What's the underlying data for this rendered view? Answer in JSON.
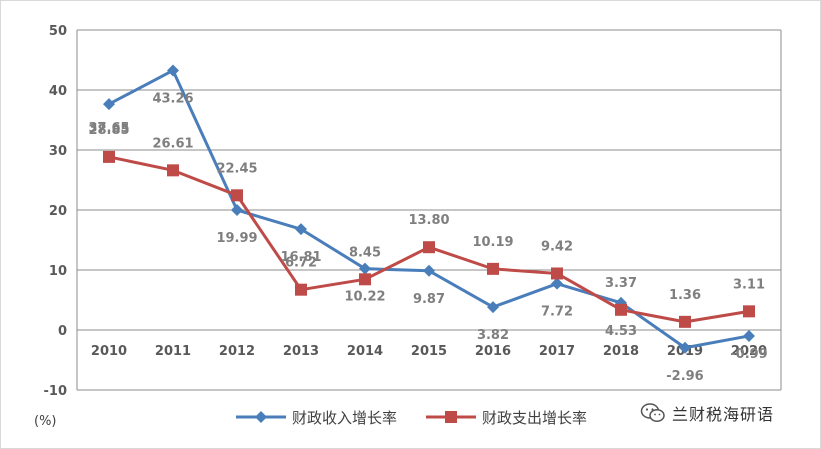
{
  "chart_data": {
    "type": "line",
    "title": "",
    "xlabel": "",
    "ylabel": "",
    "unit_label": "(%)",
    "categories": [
      "2010",
      "2011",
      "2012",
      "2013",
      "2014",
      "2015",
      "2016",
      "2017",
      "2018",
      "2019",
      "2020"
    ],
    "ylim": [
      -10,
      50
    ],
    "yticks": [
      -10,
      0,
      10,
      20,
      30,
      40,
      50
    ],
    "grid": true,
    "legend_position": "bottom-center",
    "series": [
      {
        "name": "财政收入增长率",
        "color": "#4a7ebb",
        "marker": "diamond",
        "values": [
          37.65,
          43.26,
          19.99,
          16.81,
          10.22,
          9.87,
          3.82,
          7.72,
          4.53,
          -2.96,
          -0.99
        ],
        "labels": [
          "37.65",
          "43.26",
          "19.99",
          "16.81",
          "10.22",
          "9.87",
          "3.82",
          "7.72",
          "4.53",
          "-2.96",
          "-0.99"
        ]
      },
      {
        "name": "财政支出增长率",
        "color": "#be4b48",
        "marker": "square",
        "values": [
          28.85,
          26.61,
          22.45,
          6.72,
          8.45,
          13.8,
          10.19,
          9.42,
          3.37,
          1.36,
          3.11
        ],
        "labels": [
          "28.85",
          "26.61",
          "22.45",
          "6.72",
          "8.45",
          "13.80",
          "10.19",
          "9.42",
          "3.37",
          "1.36",
          "3.11"
        ]
      }
    ]
  },
  "watermark": {
    "text": "兰财税海研语",
    "icon": "wechat-icon"
  }
}
